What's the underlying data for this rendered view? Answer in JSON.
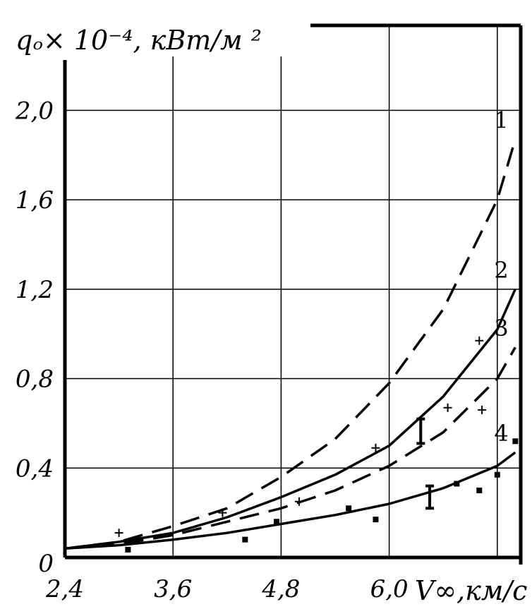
{
  "chart_data": {
    "type": "line",
    "ylabel": "qₒ× 10⁻⁴, кВт/м ²",
    "xlabel": "V∞,км/с",
    "xlim": [
      2.4,
      7.46
    ],
    "ylim": [
      0,
      2.38
    ],
    "x_ticks": [
      "2,4",
      "3,6",
      "4,8",
      "6,0"
    ],
    "y_ticks": [
      "0",
      "0,4",
      "0,8",
      "1,2",
      "1,6",
      "2,0"
    ],
    "x_tick_values": [
      2.4,
      3.6,
      4.8,
      6.0
    ],
    "y_tick_values": [
      0,
      0.4,
      0.8,
      1.2,
      1.6,
      2.0
    ],
    "grid": true,
    "series": [
      {
        "name": "1",
        "style": "dashed",
        "x": [
          2.4,
          3.0,
          3.6,
          4.2,
          4.8,
          5.4,
          6.0,
          6.6,
          7.2,
          7.4
        ],
        "y": [
          0.04,
          0.07,
          0.14,
          0.22,
          0.36,
          0.53,
          0.78,
          1.11,
          1.6,
          1.87
        ]
      },
      {
        "name": "2",
        "style": "solid",
        "x": [
          2.4,
          3.0,
          3.6,
          4.2,
          4.8,
          5.4,
          6.0,
          6.6,
          7.2,
          7.4
        ],
        "y": [
          0.04,
          0.07,
          0.11,
          0.18,
          0.27,
          0.37,
          0.5,
          0.72,
          1.02,
          1.2
        ]
      },
      {
        "name": "3",
        "style": "dashed",
        "x": [
          2.4,
          3.0,
          3.6,
          4.2,
          4.8,
          5.4,
          6.0,
          6.6,
          7.2,
          7.4
        ],
        "y": [
          0.04,
          0.06,
          0.1,
          0.16,
          0.22,
          0.3,
          0.41,
          0.56,
          0.8,
          0.94
        ]
      },
      {
        "name": "4",
        "style": "solid",
        "x": [
          2.4,
          3.0,
          3.6,
          4.2,
          4.8,
          5.4,
          6.0,
          6.6,
          7.2,
          7.4
        ],
        "y": [
          0.04,
          0.055,
          0.08,
          0.11,
          0.15,
          0.19,
          0.24,
          0.31,
          0.41,
          0.47
        ]
      }
    ],
    "plus_points": [
      {
        "x": 3.0,
        "y": 0.11
      },
      {
        "x": 4.15,
        "y": 0.2
      },
      {
        "x": 5.0,
        "y": 0.25
      },
      {
        "x": 5.85,
        "y": 0.49
      },
      {
        "x": 6.65,
        "y": 0.67
      },
      {
        "x": 7.03,
        "y": 0.66
      },
      {
        "x": 7.0,
        "y": 0.97
      }
    ],
    "square_points": [
      {
        "x": 3.1,
        "y": 0.035
      },
      {
        "x": 4.4,
        "y": 0.08
      },
      {
        "x": 4.75,
        "y": 0.16
      },
      {
        "x": 5.55,
        "y": 0.22
      },
      {
        "x": 5.85,
        "y": 0.17
      },
      {
        "x": 6.75,
        "y": 0.33
      },
      {
        "x": 7.0,
        "y": 0.3
      },
      {
        "x": 7.2,
        "y": 0.37
      },
      {
        "x": 7.4,
        "y": 0.52
      }
    ],
    "error_bars": [
      {
        "x": 6.35,
        "low": 0.51,
        "high": 0.62
      },
      {
        "x": 6.45,
        "low": 0.22,
        "high": 0.32
      }
    ]
  }
}
